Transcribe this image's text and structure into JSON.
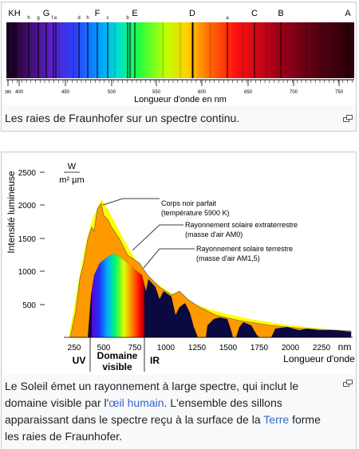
{
  "spectrum_figure": {
    "line_labels": [
      "KH",
      "h",
      "g",
      "G",
      "f e",
      "d",
      "h",
      "F",
      "c",
      "b",
      "E",
      "D",
      "a",
      "C",
      "B",
      "A"
    ],
    "tick_labels": [
      "380",
      "400",
      "450",
      "500",
      "550",
      "600",
      "650",
      "700",
      "750"
    ],
    "axis_label": "Longueur d'onde en nm",
    "caption": "Les raies de Fraunhofer sur un spectre continu."
  },
  "solar_figure": {
    "unit_top": "W",
    "unit_bottom": "m² µm",
    "y_axis_label": "Intensité lumineuse",
    "y_tick_labels": [
      "2500",
      "2000",
      "1500",
      "1000",
      "500"
    ],
    "x_tick_labels": [
      "250",
      "500",
      "750",
      "1000",
      "1250",
      "1500",
      "1750",
      "2000",
      "2250",
      "nm"
    ],
    "x_axis_label": "Longueur d'onde",
    "annotations": [
      "Corps noir parfait",
      "(température 5900 K)",
      "Rayonnement solaire extraterrestre",
      "(masse d'air AM0)",
      "Rayonnement solaire terrestre",
      "(masse d'air AM1,5)"
    ],
    "regions": [
      "UV",
      "Domaine",
      "visible",
      "IR"
    ],
    "caption": {
      "part1": "Le Soleil émet un rayonnement à large spectre, qui inclut le domaine visible par l'",
      "link1": "œil humain",
      "part2": ". L'ensemble des sillons apparaissant dans le spectre reçu à la surface de la ",
      "link2": "Terre",
      "part3": " forme les raies de Fraunhofer."
    }
  }
}
